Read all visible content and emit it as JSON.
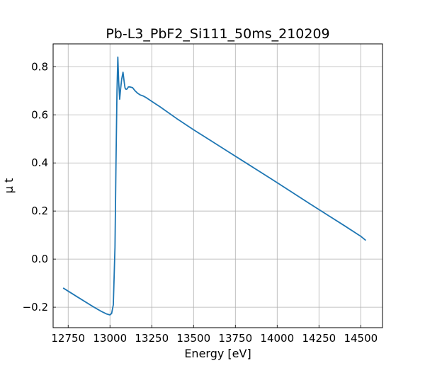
{
  "chart_data": {
    "type": "line",
    "title": "Pb-L3_PbF2_Si111_50ms_210209",
    "xlabel": "Energy [eV]",
    "ylabel": "μ t",
    "xlim": [
      12660,
      14630
    ],
    "ylim": [
      -0.285,
      0.895
    ],
    "xticks": [
      12750,
      13000,
      13250,
      13500,
      13750,
      14000,
      14250,
      14500
    ],
    "yticks": [
      -0.2,
      0.0,
      0.2,
      0.4,
      0.6,
      0.8
    ],
    "ytick_labels": [
      "−0.2",
      "0.0",
      "0.2",
      "0.4",
      "0.6",
      "0.8"
    ],
    "grid": true,
    "series": [
      {
        "color": "#1f77b4",
        "x": [
          12720,
          12800,
          12900,
          12950,
          12980,
          13000,
          13010,
          13020,
          13030,
          13036,
          13042,
          13047,
          13052,
          13058,
          13064,
          13070,
          13078,
          13085,
          13090,
          13096,
          13103,
          13110,
          13120,
          13135,
          13150,
          13165,
          13180,
          13200,
          13220,
          13250,
          13300,
          13400,
          13500,
          13600,
          13700,
          13800,
          13900,
          14000,
          14100,
          14200,
          14300,
          14400,
          14500,
          14530
        ],
        "y": [
          -0.12,
          -0.155,
          -0.198,
          -0.218,
          -0.228,
          -0.232,
          -0.226,
          -0.19,
          0.05,
          0.4,
          0.7,
          0.84,
          0.74,
          0.665,
          0.71,
          0.748,
          0.777,
          0.737,
          0.712,
          0.706,
          0.708,
          0.716,
          0.716,
          0.713,
          0.7,
          0.69,
          0.683,
          0.678,
          0.67,
          0.656,
          0.633,
          0.584,
          0.538,
          0.494,
          0.45,
          0.406,
          0.362,
          0.318,
          0.273,
          0.228,
          0.184,
          0.14,
          0.095,
          0.078
        ]
      }
    ]
  }
}
